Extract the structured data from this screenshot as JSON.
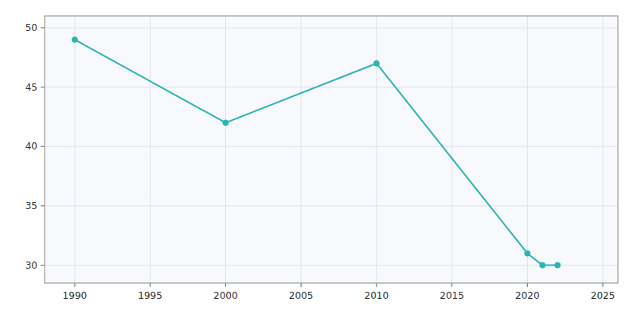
{
  "chart_data": {
    "type": "line",
    "x": [
      1990,
      2000,
      2010,
      2020,
      2021,
      2022
    ],
    "values": [
      49,
      42,
      47,
      31,
      30,
      30
    ],
    "color": "#2ab5b5",
    "marker": "circle",
    "xlim": [
      1988,
      2026
    ],
    "ylim": [
      28.5,
      51
    ],
    "xticks": [
      1990,
      1995,
      2000,
      2005,
      2010,
      2015,
      2020,
      2025
    ],
    "yticks": [
      30,
      35,
      40,
      45,
      50
    ],
    "grid": true
  }
}
